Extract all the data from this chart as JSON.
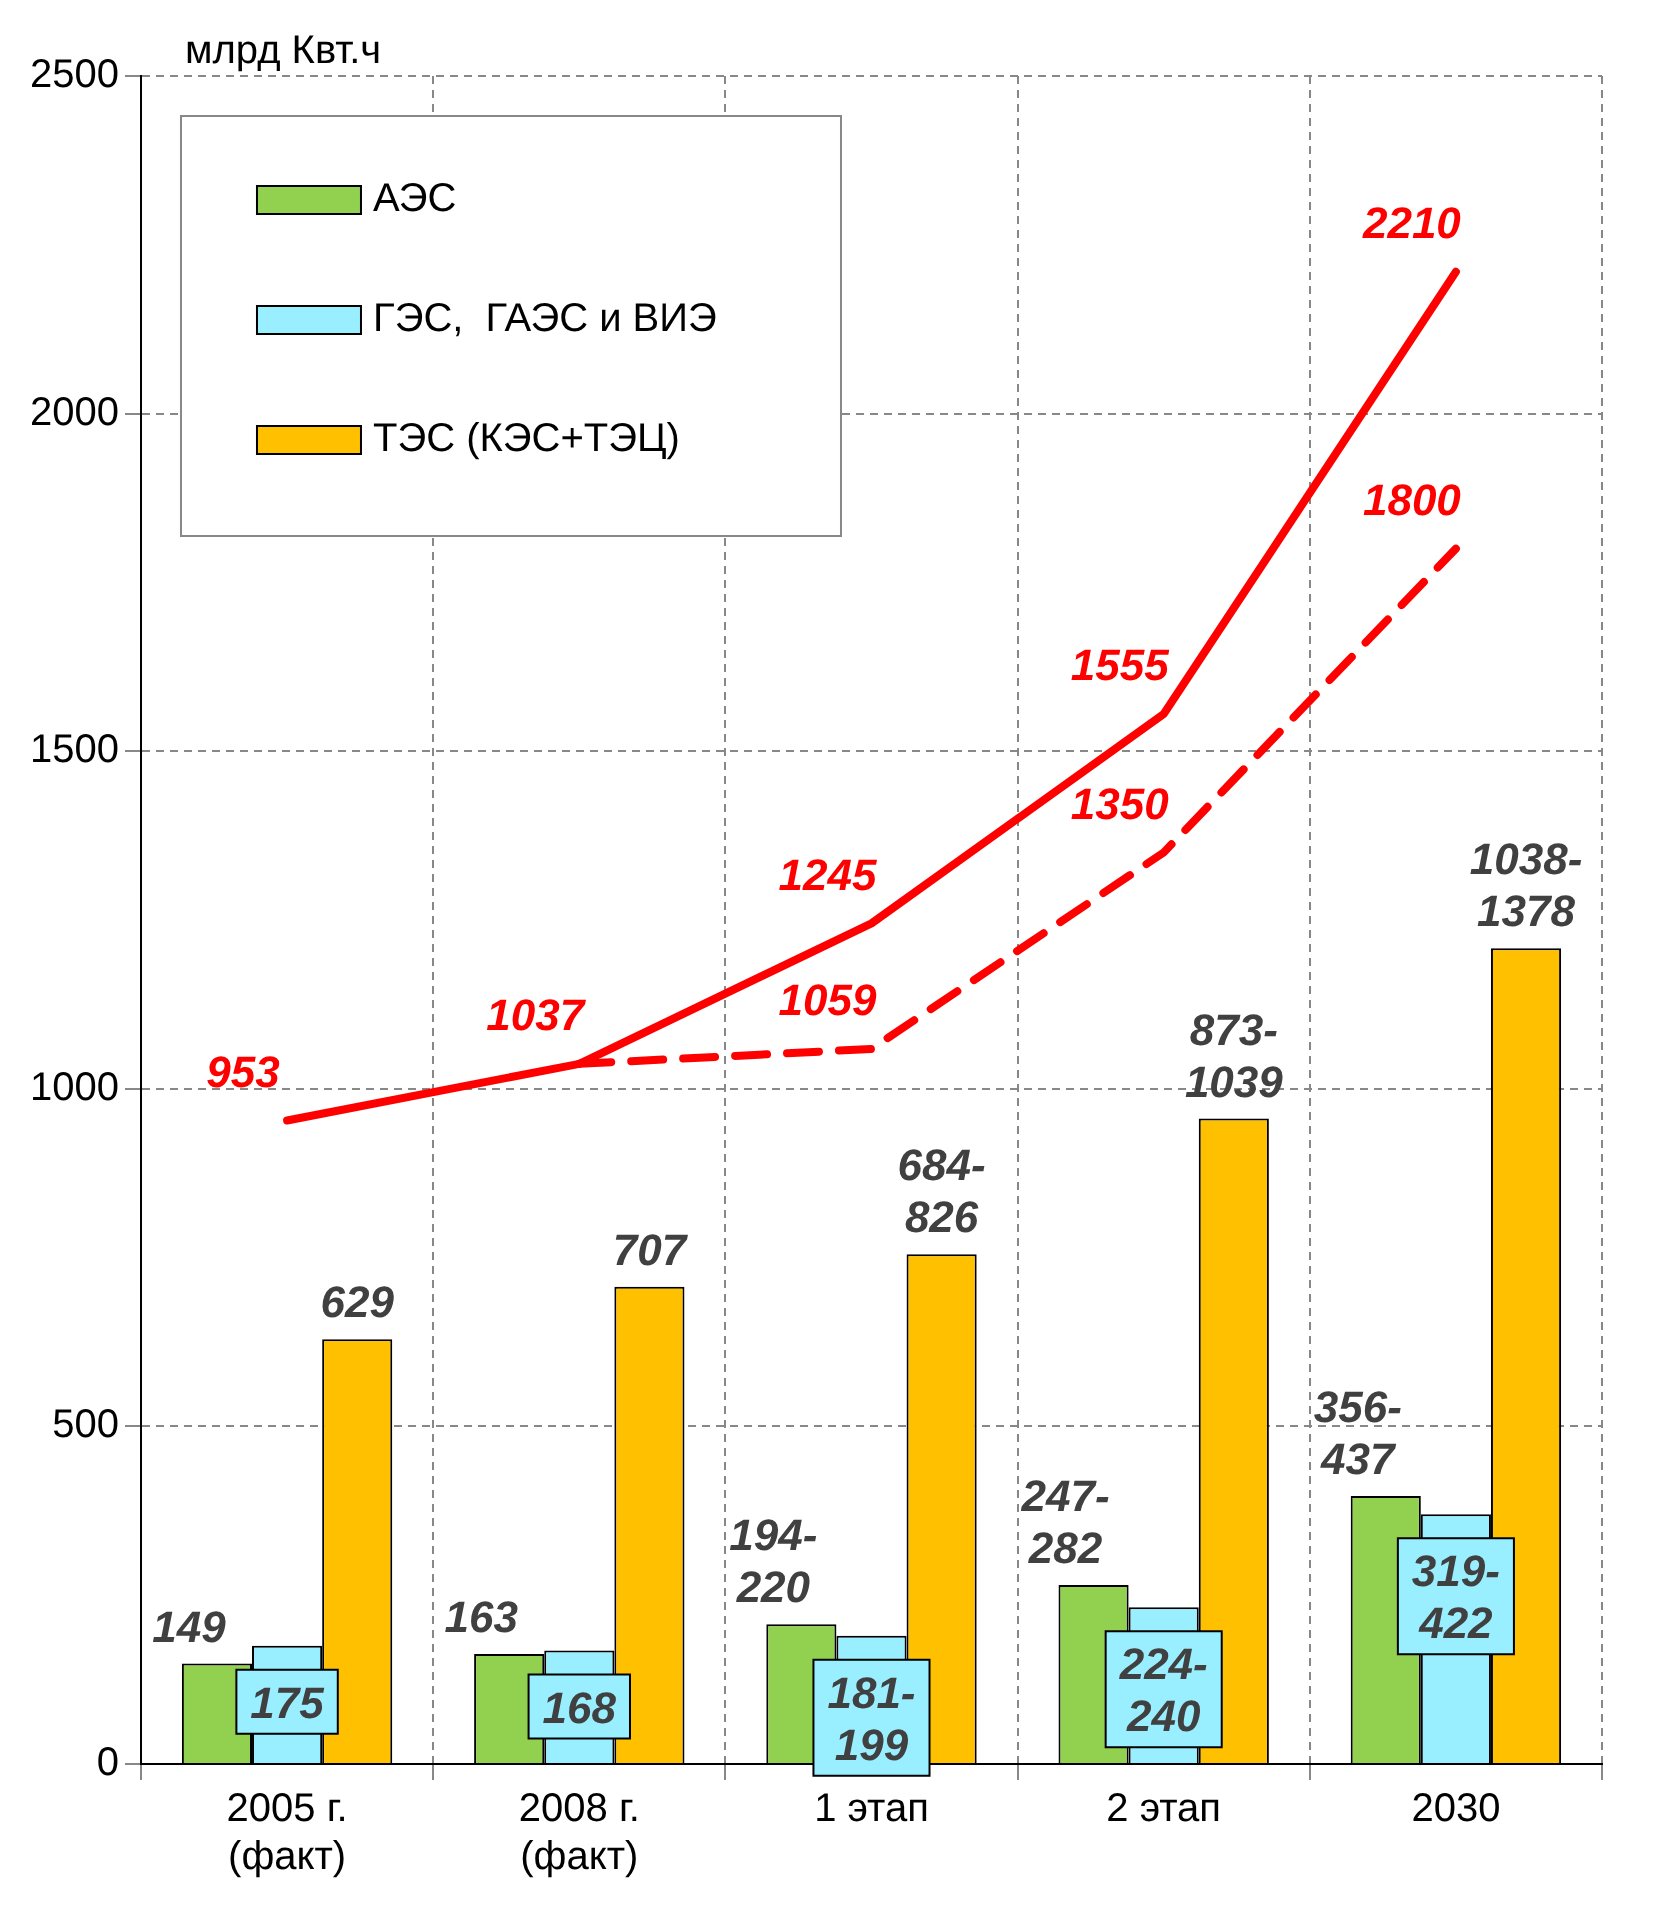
{
  "chart_data": {
    "type": "bar",
    "ylabel": "млрд Квт.ч",
    "categories": [
      "2005 г.\n(факт)",
      "2008 г.\n(факт)",
      "1 этап",
      "2 этап",
      "2030"
    ],
    "series": [
      {
        "name": "АЭС",
        "color": "#92d050",
        "values": [
          149,
          163,
          207,
          265,
          397
        ],
        "value_labels": [
          "149",
          "163",
          "194-220",
          "247-282",
          "356-437"
        ]
      },
      {
        "name": "ГЭС,  ГАЭС и ВИЭ",
        "color": "#99eeff",
        "values": [
          175,
          168,
          190,
          232,
          370
        ],
        "value_labels": [
          "175",
          "168",
          "181-199",
          "224-240",
          "319-422"
        ]
      },
      {
        "name": "ТЭС (КЭС+ТЭЦ)",
        "color": "#ffc000",
        "values": [
          629,
          707,
          755,
          956,
          1208
        ],
        "value_labels": [
          "629",
          "707",
          "684-826",
          "873-1039",
          "1038-1378"
        ]
      },
      {
        "type": "line",
        "color": "#ff0000",
        "line_style": "solid",
        "values": [
          953,
          1037,
          1245,
          1555,
          2210
        ],
        "value_labels": [
          "953",
          "1037",
          "1245",
          "1555",
          "2210"
        ]
      },
      {
        "type": "line",
        "color": "#ff0000",
        "line_style": "dashed",
        "values": [
          null,
          1037,
          1059,
          1350,
          1800
        ],
        "value_labels": [
          null,
          null,
          "1059",
          "1350",
          "1800"
        ]
      }
    ],
    "ylim": [
      0,
      2500
    ],
    "yticks": [
      0,
      500,
      1000,
      1500,
      2000,
      2500
    ],
    "grid": true,
    "legend": "top left",
    "marker": "none"
  }
}
